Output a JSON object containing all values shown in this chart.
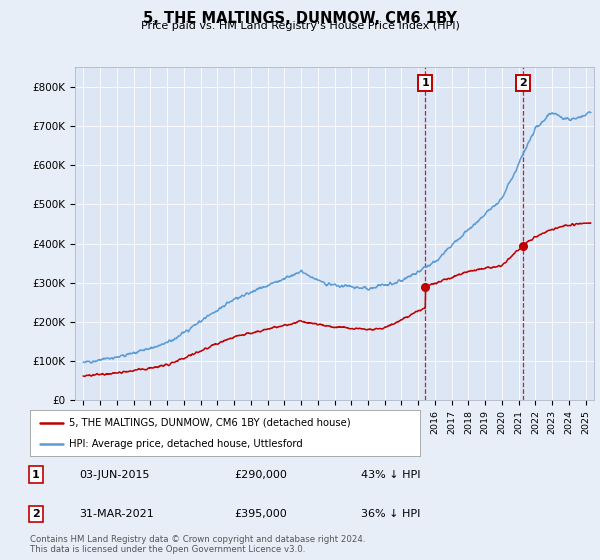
{
  "title": "5, THE MALTINGS, DUNMOW, CM6 1BY",
  "subtitle": "Price paid vs. HM Land Registry's House Price Index (HPI)",
  "legend_line1": "5, THE MALTINGS, DUNMOW, CM6 1BY (detached house)",
  "legend_line2": "HPI: Average price, detached house, Uttlesford",
  "footnote": "Contains HM Land Registry data © Crown copyright and database right 2024.\nThis data is licensed under the Open Government Licence v3.0.",
  "annotation1": {
    "label": "1",
    "date": "03-JUN-2015",
    "price": "£290,000",
    "pct": "43% ↓ HPI"
  },
  "annotation2": {
    "label": "2",
    "date": "31-MAR-2021",
    "price": "£395,000",
    "pct": "36% ↓ HPI"
  },
  "hpi_color": "#5b9bd5",
  "price_color": "#c00000",
  "annotation_color": "#c00000",
  "vline_color": "#c00000",
  "background_color": "#e8eef7",
  "plot_bg_color": "#dce6f5",
  "ylim": [
    0,
    850000
  ],
  "yticks": [
    0,
    100000,
    200000,
    300000,
    400000,
    500000,
    600000,
    700000,
    800000
  ],
  "ytick_labels": [
    "£0",
    "£100K",
    "£200K",
    "£300K",
    "£400K",
    "£500K",
    "£600K",
    "£700K",
    "£800K"
  ],
  "xmin": 1994.5,
  "xmax": 2025.5,
  "ann1_x": 2015.42,
  "ann1_y": 290000,
  "ann2_x": 2021.25,
  "ann2_y": 395000
}
